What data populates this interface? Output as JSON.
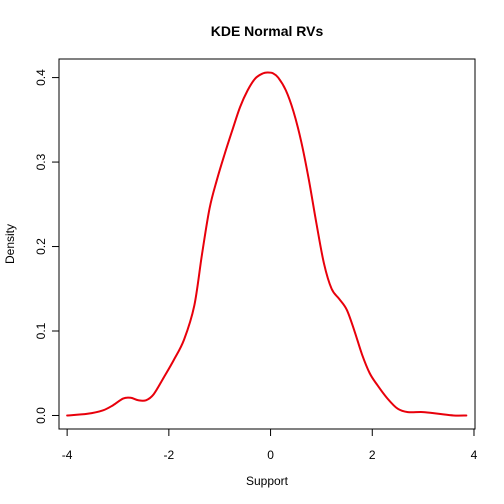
{
  "chart_data": {
    "type": "line",
    "title": "KDE Normal RVs",
    "xlabel": "Support",
    "ylabel": "Density",
    "xlim": [
      -4.16,
      4.02
    ],
    "ylim": [
      -0.016,
      0.422
    ],
    "xticks": [
      -4,
      -2,
      0,
      2,
      4
    ],
    "xtick_labels": [
      "-4",
      "-2",
      "0",
      "2",
      "4"
    ],
    "yticks": [
      0.0,
      0.1,
      0.2,
      0.3,
      0.4
    ],
    "ytick_labels": [
      "0.0",
      "0.1",
      "0.2",
      "0.3",
      "0.4"
    ],
    "grid": false,
    "line_color": "#e8000b",
    "series": [
      {
        "x": [
          -4.0,
          -3.6,
          -3.3,
          -3.1,
          -2.9,
          -2.75,
          -2.6,
          -2.45,
          -2.3,
          -2.1,
          -1.9,
          -1.7,
          -1.5,
          -1.35,
          -1.2,
          -1.05,
          -0.9,
          -0.75,
          -0.6,
          -0.45,
          -0.3,
          -0.15,
          -0.05,
          0.05,
          0.15,
          0.3,
          0.45,
          0.6,
          0.75,
          0.9,
          1.05,
          1.2,
          1.35,
          1.5,
          1.65,
          1.8,
          1.95,
          2.1,
          2.3,
          2.5,
          2.7,
          3.0,
          3.3,
          3.6,
          3.85
        ],
        "y": [
          0.0,
          0.002,
          0.006,
          0.012,
          0.02,
          0.021,
          0.018,
          0.018,
          0.025,
          0.045,
          0.066,
          0.09,
          0.13,
          0.19,
          0.245,
          0.28,
          0.31,
          0.338,
          0.365,
          0.385,
          0.399,
          0.405,
          0.406,
          0.405,
          0.4,
          0.385,
          0.36,
          0.325,
          0.28,
          0.228,
          0.18,
          0.15,
          0.138,
          0.125,
          0.1,
          0.072,
          0.05,
          0.036,
          0.02,
          0.008,
          0.004,
          0.004,
          0.002,
          0.0,
          0.0
        ]
      }
    ]
  }
}
